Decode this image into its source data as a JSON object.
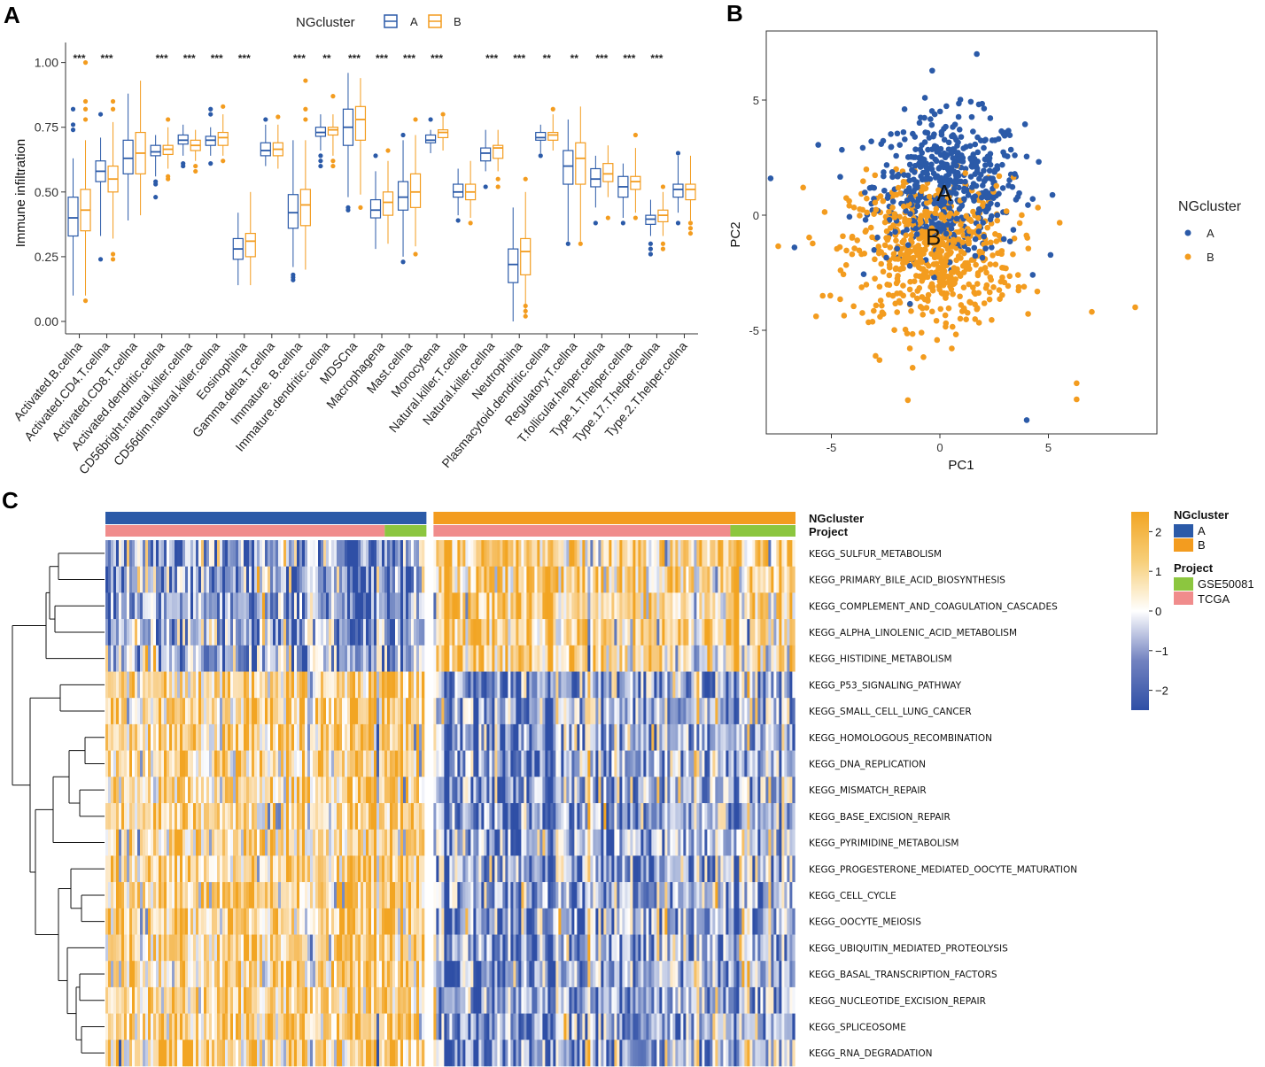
{
  "panels": {
    "a": "A",
    "b": "B",
    "c": "C"
  },
  "colors": {
    "A": "#2b5aa8",
    "B": "#f39c1f",
    "GSE50081": "#8cc63f",
    "TCGA": "#f08c8c",
    "low": "#2f4fa6",
    "mid": "#ffffff",
    "high": "#f2a523"
  },
  "chart_data": [
    {
      "type": "box",
      "legend_title": "NGcluster",
      "legend_items": [
        "A",
        "B"
      ],
      "ylabel": "Immune infiltration",
      "ylim": [
        0,
        1.05
      ],
      "yticks": [
        "0.00",
        "0.25",
        "0.50",
        "0.75",
        "1.00"
      ],
      "ytick_values": [
        0,
        0.25,
        0.5,
        0.75,
        1.0
      ],
      "categories": [
        "Activated.B.cellna",
        "Activated.CD4.T.cellna",
        "Activated.CD8.T.cellna",
        "Activated.dendritic.cellna",
        "CD56bright.natural.killer.cellna",
        "CD56dim.natural.killer.cellna",
        "Eosinophilna",
        "Gamma.delta.T.cellna",
        "Immature. B.cellna",
        "Immature.dendritic.cellna",
        "MDSCna",
        "Macrophagena",
        "Mast.cellna",
        "Monocytena",
        "Natural.killer.T.cellna",
        "Natural.killer.cellna",
        "Neutrophilna",
        "Plasmacytoid.dendritic.cellna",
        "Regulatory.T.cellna",
        "T.follicular.helper.cellna",
        "Type.1.T.helper.cellna",
        "Type.17.T.helper.cellna",
        "Type.2.T.helper.cellna"
      ],
      "significance": [
        "***",
        "***",
        "",
        "***",
        "***",
        "***",
        "***",
        "",
        "***",
        "**",
        "***",
        "***",
        "***",
        "***",
        "",
        "***",
        "***",
        "**",
        "**",
        "***",
        "***",
        "***",
        ""
      ],
      "series": [
        {
          "name": "A",
          "boxes": [
            [
              0.1,
              0.33,
              0.4,
              0.48,
              0.63
            ],
            [
              0.33,
              0.54,
              0.58,
              0.62,
              0.71
            ],
            [
              0.39,
              0.57,
              0.63,
              0.7,
              0.88
            ],
            [
              0.56,
              0.64,
              0.655,
              0.68,
              0.72
            ],
            [
              0.64,
              0.685,
              0.7,
              0.72,
              0.76
            ],
            [
              0.64,
              0.68,
              0.7,
              0.715,
              0.75
            ],
            [
              0.14,
              0.24,
              0.28,
              0.32,
              0.42
            ],
            [
              0.6,
              0.64,
              0.66,
              0.69,
              0.76
            ],
            [
              0.21,
              0.36,
              0.42,
              0.49,
              0.7
            ],
            [
              0.66,
              0.715,
              0.73,
              0.75,
              0.8
            ],
            [
              0.48,
              0.68,
              0.75,
              0.82,
              0.96
            ],
            [
              0.28,
              0.4,
              0.43,
              0.47,
              0.58
            ],
            [
              0.25,
              0.43,
              0.48,
              0.54,
              0.7
            ],
            [
              0.65,
              0.69,
              0.7,
              0.72,
              0.74
            ],
            [
              0.41,
              0.48,
              0.5,
              0.53,
              0.59
            ],
            [
              0.58,
              0.62,
              0.65,
              0.67,
              0.74
            ],
            [
              0.0,
              0.15,
              0.22,
              0.28,
              0.44
            ],
            [
              0.65,
              0.7,
              0.71,
              0.73,
              0.76
            ],
            [
              0.31,
              0.53,
              0.6,
              0.66,
              0.78
            ],
            [
              0.44,
              0.52,
              0.55,
              0.59,
              0.64
            ],
            [
              0.4,
              0.48,
              0.52,
              0.56,
              0.61
            ],
            [
              0.33,
              0.375,
              0.395,
              0.41,
              0.47
            ],
            [
              0.42,
              0.48,
              0.51,
              0.53,
              0.64
            ]
          ],
          "outliers": [
            [
              0.82,
              0.76,
              0.74
            ],
            [
              0.8,
              0.24
            ],
            [],
            [
              0.53,
              0.54,
              0.48
            ],
            [
              0.61,
              0.6
            ],
            [
              0.8,
              0.82,
              0.61
            ],
            [],
            [
              0.78
            ],
            [
              0.16,
              0.17,
              0.18
            ],
            [
              0.6,
              0.62,
              0.64
            ],
            [
              0.43,
              0.44
            ],
            [
              0.64
            ],
            [
              0.23,
              0.72
            ],
            [
              0.78
            ],
            [
              0.39
            ],
            [
              0.52
            ],
            [],
            [
              0.64
            ],
            [
              0.3
            ],
            [
              0.38
            ],
            [
              0.38
            ],
            [
              0.26,
              0.28,
              0.3
            ],
            [
              0.38,
              0.65
            ]
          ]
        },
        {
          "name": "B",
          "boxes": [
            [
              0.1,
              0.35,
              0.43,
              0.51,
              0.7
            ],
            [
              0.32,
              0.5,
              0.55,
              0.6,
              0.77
            ],
            [
              0.41,
              0.57,
              0.65,
              0.73,
              0.93
            ],
            [
              0.59,
              0.645,
              0.665,
              0.68,
              0.75
            ],
            [
              0.62,
              0.66,
              0.68,
              0.7,
              0.74
            ],
            [
              0.64,
              0.68,
              0.71,
              0.73,
              0.8
            ],
            [
              0.14,
              0.25,
              0.31,
              0.34,
              0.5
            ],
            [
              0.59,
              0.64,
              0.665,
              0.69,
              0.76
            ],
            [
              0.2,
              0.37,
              0.45,
              0.51,
              0.7
            ],
            [
              0.64,
              0.72,
              0.74,
              0.75,
              0.8
            ],
            [
              0.49,
              0.7,
              0.78,
              0.83,
              0.94
            ],
            [
              0.3,
              0.41,
              0.46,
              0.5,
              0.62
            ],
            [
              0.29,
              0.44,
              0.5,
              0.57,
              0.72
            ],
            [
              0.66,
              0.71,
              0.73,
              0.74,
              0.79
            ],
            [
              0.4,
              0.47,
              0.5,
              0.53,
              0.62
            ],
            [
              0.58,
              0.63,
              0.67,
              0.68,
              0.74
            ],
            [
              0.02,
              0.18,
              0.27,
              0.32,
              0.5
            ],
            [
              0.66,
              0.7,
              0.72,
              0.73,
              0.8
            ],
            [
              0.31,
              0.53,
              0.63,
              0.69,
              0.83
            ],
            [
              0.48,
              0.54,
              0.57,
              0.61,
              0.68
            ],
            [
              0.42,
              0.51,
              0.54,
              0.56,
              0.67
            ],
            [
              0.33,
              0.385,
              0.41,
              0.43,
              0.5
            ],
            [
              0.39,
              0.47,
              0.51,
              0.53,
              0.64
            ]
          ],
          "outliers": [
            [
              1.0,
              0.85,
              0.82,
              0.78,
              0.08
            ],
            [
              0.85,
              0.82,
              0.26,
              0.24
            ],
            [],
            [
              0.78,
              0.55,
              0.56
            ],
            [
              0.6,
              0.58
            ],
            [
              0.83,
              0.62
            ],
            [],
            [
              0.79
            ],
            [
              0.93,
              0.82,
              0.78
            ],
            [
              0.87,
              0.6,
              0.62
            ],
            [
              0.44
            ],
            [
              0.66
            ],
            [
              0.26,
              0.78
            ],
            [
              0.8
            ],
            [
              0.38
            ],
            [
              0.52,
              0.55
            ],
            [
              0.55,
              0.02,
              0.04,
              0.06
            ],
            [
              0.82
            ],
            [
              0.3
            ],
            [
              0.4
            ],
            [
              0.4,
              0.72
            ],
            [
              0.28,
              0.3,
              0.52
            ],
            [
              0.34,
              0.36,
              0.38
            ]
          ]
        }
      ]
    },
    {
      "type": "scatter",
      "xlabel": "PC1",
      "ylabel": "PC2",
      "xlim": [
        -8,
        10
      ],
      "ylim": [
        -9.5,
        8
      ],
      "xticks": [
        "-5",
        "0",
        "5"
      ],
      "xtick_values": [
        -5,
        0,
        5
      ],
      "yticks": [
        "-5",
        "0",
        "5"
      ],
      "ytick_values": [
        -5,
        0,
        5
      ],
      "legend_title": "NGcluster",
      "legend_items": [
        "A",
        "B"
      ],
      "centroids": [
        {
          "label": "A",
          "x": 0.2,
          "y": 1.0
        },
        {
          "label": "B",
          "x": -0.3,
          "y": -0.9
        }
      ],
      "series": [
        {
          "name": "A",
          "center": [
            0.4,
            1.3
          ],
          "spread": [
            2.3,
            1.9
          ],
          "n": 520
        },
        {
          "name": "B",
          "center": [
            -0.4,
            -1.6
          ],
          "spread": [
            2.5,
            2.0
          ],
          "n": 620
        }
      ],
      "outlier_points": [
        [
          -7.8,
          1.6
        ],
        [
          -6.3,
          1.2
        ],
        [
          9.0,
          -4.0
        ],
        [
          4.0,
          -8.9
        ],
        [
          6.3,
          -7.3
        ],
        [
          6.3,
          -8.0
        ],
        [
          1.7,
          7.0
        ],
        [
          -5.4,
          -3.5
        ],
        [
          7.0,
          -4.2
        ],
        [
          -6.7,
          -1.4
        ]
      ]
    },
    {
      "type": "heatmap",
      "annotation_rows": [
        "NGcluster",
        "Project"
      ],
      "rows": [
        "KEGG_SULFUR_METABOLISM",
        "KEGG_PRIMARY_BILE_ACID_BIOSYNTHESIS",
        "KEGG_COMPLEMENT_AND_COAGULATION_CASCADES",
        "KEGG_ALPHA_LINOLENIC_ACID_METABOLISM",
        "KEGG_HISTIDINE_METABOLISM",
        "KEGG_P53_SIGNALING_PATHWAY",
        "KEGG_SMALL_CELL_LUNG_CANCER",
        "KEGG_HOMOLOGOUS_RECOMBINATION",
        "KEGG_DNA_REPLICATION",
        "KEGG_MISMATCH_REPAIR",
        "KEGG_BASE_EXCISION_REPAIR",
        "KEGG_PYRIMIDINE_METABOLISM",
        "KEGG_PROGESTERONE_MEDIATED_OOCYTE_MATURATION",
        "KEGG_CELL_CYCLE",
        "KEGG_OOCYTE_MEIOSIS",
        "KEGG_UBIQUITIN_MEDIATED_PROTEOLYSIS",
        "KEGG_BASAL_TRANSCRIPTION_FACTORS",
        "KEGG_NUCLEOTIDE_EXCISION_REPAIR",
        "KEGG_SPLICEOSOME",
        "KEGG_RNA_DEGRADATION"
      ],
      "row_direction_A": [
        -1,
        -1,
        -1,
        -1,
        -1,
        1,
        1,
        1,
        1,
        1,
        1,
        1,
        1,
        1,
        1,
        1,
        1,
        1,
        1,
        1
      ],
      "groups": [
        {
          "name": "A",
          "fraction": 0.47
        },
        {
          "name": "B",
          "fraction": 0.53
        }
      ],
      "project_split": {
        "A": {
          "TCGA": 0.87,
          "GSE50081": 0.13
        },
        "B": {
          "TCGA": 0.82,
          "GSE50081": 0.18
        }
      },
      "color_scale": {
        "min": -2.5,
        "max": 2.5,
        "ticks": [
          "2",
          "1",
          "0",
          "−1",
          "−2"
        ],
        "tick_values": [
          2,
          1,
          0,
          -1,
          -2
        ]
      },
      "legend": {
        "ngcluster_title": "NGcluster",
        "ngcluster_items": [
          "A",
          "B"
        ],
        "project_title": "Project",
        "project_items": [
          "GSE50081",
          "TCGA"
        ]
      }
    }
  ]
}
